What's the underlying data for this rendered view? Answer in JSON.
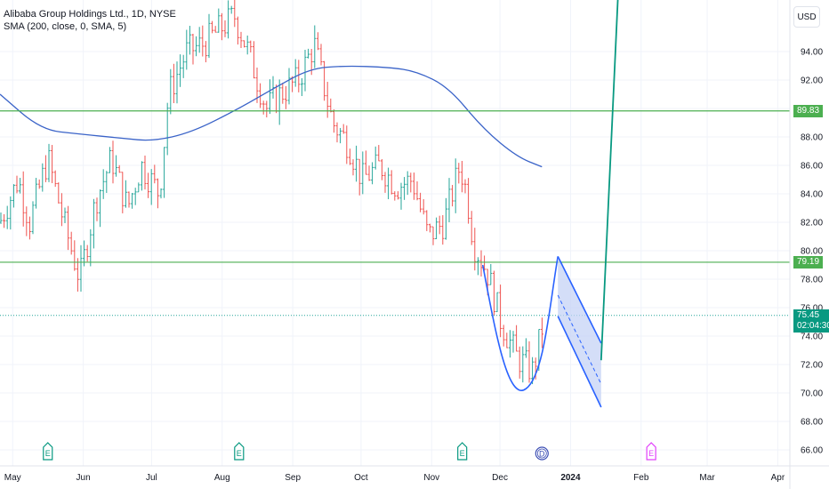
{
  "header": {
    "symbol_line": "Alibaba Group Holdings Ltd., 1D, NYSE",
    "indicator_line": "SMA (200, close, 0, SMA, 5)"
  },
  "currency": "USD",
  "price_axis": {
    "ticks": [
      "94.00",
      "92.00",
      "90.00",
      "88.00",
      "86.00",
      "84.00",
      "82.00",
      "80.00",
      "78.00",
      "76.00",
      "74.00",
      "72.00",
      "70.00",
      "68.00",
      "66.00"
    ]
  },
  "time_axis": {
    "ticks": [
      "May",
      "Jun",
      "Jul",
      "Aug",
      "Sep",
      "Oct",
      "Nov",
      "Dec",
      "2024",
      "Feb",
      "Mar",
      "Apr"
    ]
  },
  "price_tags": {
    "upper_level": "89.83",
    "lower_level": "79.19",
    "last_price": "75.45",
    "countdown": "02:04:30"
  },
  "markers": {
    "earnings_letter": "E",
    "dividend_letter": "D"
  },
  "colors": {
    "up": "#26a69a",
    "down": "#ef5350",
    "sma": "#3a63c8",
    "level_line": "#4caf50",
    "projection": "#2962ff",
    "projection_fill": "#c5d3f5",
    "green_arrow": "#089981",
    "earnings": "#089981",
    "earnings_future": "#e040fb",
    "dividend": "#3f51b5",
    "last_price_bg": "#089981"
  },
  "chart_data": {
    "type": "candlestick",
    "y_range": [
      65,
      97
    ],
    "sma_label": "SMA (200, close, 0, SMA, 5)",
    "horizontal_levels": [
      89.83,
      79.19
    ],
    "last_price": 75.45,
    "sma_points": [
      [
        "2023-04-27",
        91.0
      ],
      [
        "2023-05-15",
        88.5
      ],
      [
        "2023-06-01",
        88.2
      ],
      [
        "2023-06-20",
        87.9
      ],
      [
        "2023-07-03",
        87.7
      ],
      [
        "2023-07-20",
        88.3
      ],
      [
        "2023-08-10",
        90.0
      ],
      [
        "2023-08-25",
        91.4
      ],
      [
        "2023-09-10",
        92.8
      ],
      [
        "2023-09-25",
        93.0
      ],
      [
        "2023-10-15",
        92.9
      ],
      [
        "2023-10-27",
        92.6
      ],
      [
        "2023-11-10",
        91.5
      ],
      [
        "2023-11-25",
        88.6
      ],
      [
        "2023-12-10",
        86.6
      ],
      [
        "2023-12-21",
        85.9
      ]
    ],
    "close_path": [
      [
        "2023-04-27",
        82.0
      ],
      [
        "2023-05-05",
        85.0
      ],
      [
        "2023-05-10",
        82.0
      ],
      [
        "2023-05-18",
        86.5
      ],
      [
        "2023-05-25",
        82.0
      ],
      [
        "2023-06-01",
        78.0
      ],
      [
        "2023-06-08",
        83.5
      ],
      [
        "2023-06-15",
        86.5
      ],
      [
        "2023-06-22",
        83.0
      ],
      [
        "2023-06-28",
        86.0
      ],
      [
        "2023-07-06",
        84.0
      ],
      [
        "2023-07-10",
        91.0
      ],
      [
        "2023-07-18",
        94.0
      ],
      [
        "2023-07-25",
        94.5
      ],
      [
        "2023-08-01",
        95.5
      ],
      [
        "2023-08-08",
        96.5
      ],
      [
        "2023-08-14",
        94.0
      ],
      [
        "2023-08-22",
        90.0
      ],
      [
        "2023-08-28",
        91.0
      ],
      [
        "2023-09-05",
        92.0
      ],
      [
        "2023-09-12",
        94.5
      ],
      [
        "2023-09-20",
        89.0
      ],
      [
        "2023-09-27",
        87.5
      ],
      [
        "2023-10-03",
        85.0
      ],
      [
        "2023-10-11",
        86.0
      ],
      [
        "2023-10-18",
        84.5
      ],
      [
        "2023-10-25",
        85.0
      ],
      [
        "2023-11-01",
        81.0
      ],
      [
        "2023-11-08",
        82.0
      ],
      [
        "2023-11-15",
        86.0
      ],
      [
        "2023-11-18",
        84.0
      ],
      [
        "2023-11-21",
        80.5
      ],
      [
        "2023-11-27",
        78.5
      ],
      [
        "2023-12-03",
        75.0
      ],
      [
        "2023-12-10",
        72.5
      ],
      [
        "2023-12-17",
        71.5
      ],
      [
        "2023-12-21",
        74.5
      ],
      [
        "2023-12-22",
        75.45
      ]
    ],
    "projection_drawing": {
      "arc_dates": [
        "2023-11-25",
        "2023-12-14",
        "2023-12-28"
      ],
      "arc_prices": [
        79.0,
        70.3,
        79.6
      ],
      "channel_top": [
        [
          "2023-12-28",
          79.6
        ],
        [
          "2024-01-16",
          73.5
        ]
      ],
      "channel_bottom": [
        [
          "2023-12-28",
          75.4
        ],
        [
          "2024-01-16",
          69.0
        ]
      ],
      "target_line": [
        [
          "2024-01-16",
          72.3
        ],
        [
          "2024-01-24",
          100.0
        ]
      ]
    },
    "events": [
      {
        "type": "earnings",
        "date": "2023-05-18"
      },
      {
        "type": "earnings",
        "date": "2023-08-10"
      },
      {
        "type": "earnings",
        "date": "2023-11-16"
      },
      {
        "type": "dividend",
        "date": "2023-12-21"
      },
      {
        "type": "earnings",
        "date": "2024-02-07",
        "future": true
      }
    ]
  }
}
